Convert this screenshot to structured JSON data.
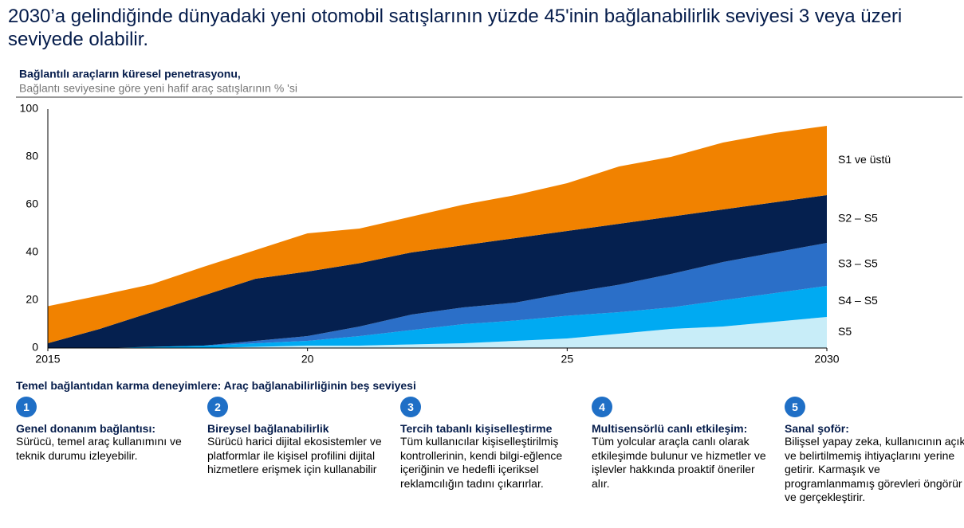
{
  "header": {
    "title": "2030’a gelindiğinde dünyadaki yeni otomobil satışlarının yüzde 45'inin bağlanabilirlik seviyesi 3 veya üzeri seviyede olabilir."
  },
  "chart_data": {
    "type": "stacked_area",
    "title": "Bağlantılı araçların küresel penetrasyonu,",
    "subtitle": "Bağlantı seviyesine göre yeni hafif araç satışlarının  % 'si",
    "x": [
      2015,
      2016,
      2017,
      2018,
      2019,
      2020,
      2021,
      2022,
      2023,
      2024,
      2025,
      2026,
      2027,
      2028,
      2029,
      2030
    ],
    "xlim": [
      2015,
      2030
    ],
    "xticks": [
      2015,
      {
        "value": 2020,
        "label": "20"
      },
      {
        "value": 2025,
        "label": "25"
      },
      2030
    ],
    "ylim": [
      0,
      100
    ],
    "yticks": [
      0,
      20,
      40,
      60,
      80,
      100
    ],
    "grid": false,
    "series": [
      {
        "name": "S5",
        "color": "#c8edf8",
        "values": [
          0,
          0,
          0,
          0,
          0.5,
          1,
          1,
          1.5,
          2,
          3,
          4,
          6,
          8,
          9,
          11,
          13
        ]
      },
      {
        "name": "S4 – S5",
        "color": "#00aaf2",
        "values": [
          0,
          0,
          0.5,
          1,
          1.5,
          2,
          4,
          6,
          8,
          8.5,
          9.5,
          9,
          9,
          11,
          12,
          13
        ]
      },
      {
        "name": "S3 – S5",
        "color": "#2b6fc8",
        "values": [
          0,
          0,
          0,
          0,
          1,
          2,
          4,
          6.5,
          7,
          7.5,
          9.5,
          11.5,
          14,
          16,
          17,
          18
        ]
      },
      {
        "name": "S2 – S5",
        "color": "#05204f",
        "values": [
          2,
          8,
          14.5,
          21,
          26,
          27,
          26.5,
          26,
          26,
          27,
          26,
          25.5,
          24,
          22,
          21,
          20
        ]
      },
      {
        "name": "S1  ve üstü",
        "color": "#f18200",
        "values": [
          15.5,
          14,
          11.7,
          12,
          12,
          16,
          14.5,
          15,
          17,
          18,
          20,
          24,
          25,
          28,
          29,
          29
        ]
      }
    ]
  },
  "levels": {
    "heading": "Temel bağlantıdan karma deneyimlere: Araç bağlanabilirliğinin  beş seviyesi",
    "items": [
      {
        "number": "1",
        "title": "Genel donanım bağlantısı:",
        "text": "Sürücü,  temel araç kullanımını ve teknik durumu  izleyebilir."
      },
      {
        "number": "2",
        "title": "Bireysel bağlanabilirlik",
        "text": "Sürücü  harici dijital ekosistemler ve platformlar  ile kişisel profilini dijital hizmetlere erişmek için kullanabilir"
      },
      {
        "number": "3",
        "title": "Tercih tabanlı kişiselleştirme",
        "text": "Tüm kullanıcılar kişiselleştirilmiş kontrollerinin, kendi bilgi-eğlence içeriğinin ve hedefli içeriksel reklamcılığın tadını  çıkarırlar."
      },
      {
        "number": "4",
        "title": "Multisensörlü canlı etkileşim:",
        "text": "Tüm yolcular  araçla canlı olarak etkileşimde bulunur  ve hizmetler ve işlevler hakkında proaktif öneriler alır."
      },
      {
        "number": "5",
        "title": "Sanal şoför:",
        "text": "Bilişsel yapay zeka, kullanıcının   açık ve belirtilmemiş ihtiyaçlarını  yerine getirir. Karmaşık ve programlanmamış  görevleri öngörür ve gerçekleştirir."
      }
    ]
  }
}
